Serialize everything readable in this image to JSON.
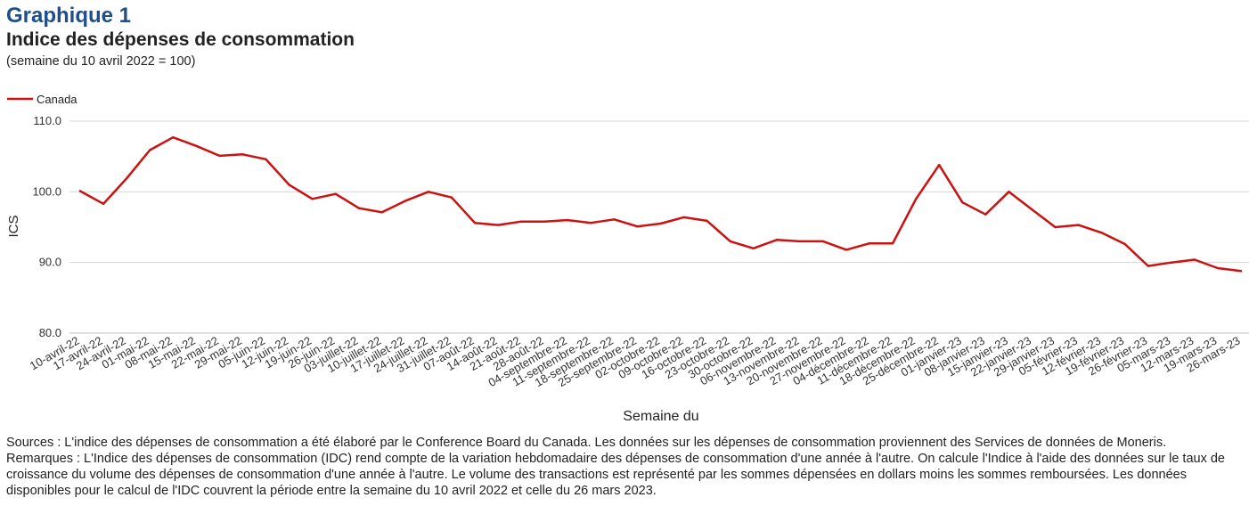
{
  "header": {
    "graph_number": "Graphique 1",
    "title": "Indice des dépenses de consommation",
    "subtitle": "(semaine du 10 avril 2022 = 100)"
  },
  "chart_data": {
    "type": "line",
    "xlabel": "Semaine du",
    "ylabel": "ICS",
    "ylim": [
      80,
      110
    ],
    "yticks": [
      "80.0",
      "90.0",
      "100.0",
      "110.0"
    ],
    "grid": true,
    "legend_position": "top-left",
    "series_color": "#cc1111",
    "categories": [
      "10-avril-22",
      "17-avril-22",
      "24-avril-22",
      "01-mai-22",
      "08-mai-22",
      "15-mai-22",
      "22-mai-22",
      "29-mai-22",
      "05-juin-22",
      "12-juin-22",
      "19-juin-22",
      "26-juin-22",
      "03-juillet-22",
      "10-juillet-22",
      "17-juillet-22",
      "24-juillet-22",
      "31-juillet-22",
      "07-août-22",
      "14-août-22",
      "21-août-22",
      "28-août-22",
      "04-septembre-22",
      "11-septembre-22",
      "18-septembre-22",
      "25-septembre-22",
      "02-octobre-22",
      "09-octobre-22",
      "16-octobre-22",
      "23-octobre-22",
      "30-octobre-22",
      "06-novembre-22",
      "13-novembre-22",
      "20-novembre-22",
      "27-novembre-22",
      "04-décembre-22",
      "11-décembre-22",
      "18-décembre-22",
      "25-décembre-22",
      "01-janvier-23",
      "08-janvier-23",
      "15-janvier-23",
      "22-janvier-23",
      "29-janvier-23",
      "05-février-23",
      "12-février-23",
      "19-février-23",
      "26-février-23",
      "05-mars-23",
      "12-mars-23",
      "19-mars-23",
      "26-mars-23"
    ],
    "series": [
      {
        "name": "Canada",
        "values": [
          100.1,
          98.3,
          101.9,
          105.9,
          107.7,
          106.5,
          105.1,
          105.3,
          104.6,
          101.0,
          99.0,
          99.7,
          97.7,
          97.1,
          98.7,
          100.0,
          99.2,
          95.6,
          95.3,
          95.8,
          95.8,
          96.0,
          95.6,
          96.1,
          95.1,
          95.5,
          96.4,
          95.9,
          93.0,
          92.0,
          93.2,
          93.0,
          93.0,
          91.8,
          92.7,
          92.7,
          99.0,
          103.8,
          98.5,
          96.8,
          100.0,
          97.5,
          95.0,
          95.3,
          94.2,
          92.6,
          89.5,
          90.0,
          90.4,
          89.2,
          88.8
        ]
      }
    ]
  },
  "notes": {
    "sources": "Sources : L'indice des dépenses de consommation a été élaboré par le Conference Board du Canada. Les données sur les dépenses de consommation proviennent des Services de données de Moneris.",
    "remarks": "Remarques : L'Indice des dépenses de consommation (IDC) rend compte de la variation hebdomadaire des dépenses de consommation d'une année à l'autre. On calcule l'Indice à l'aide des données sur le taux de croissance du volume des dépenses de consommation d'une année à l'autre. Le volume des transactions est représenté par les sommes dépensées en dollars moins les sommes remboursées. Les données disponibles pour le calcul de l'IDC couvrent la période entre la semaine du 10 avril 2022 et celle du 26 mars 2023."
  }
}
